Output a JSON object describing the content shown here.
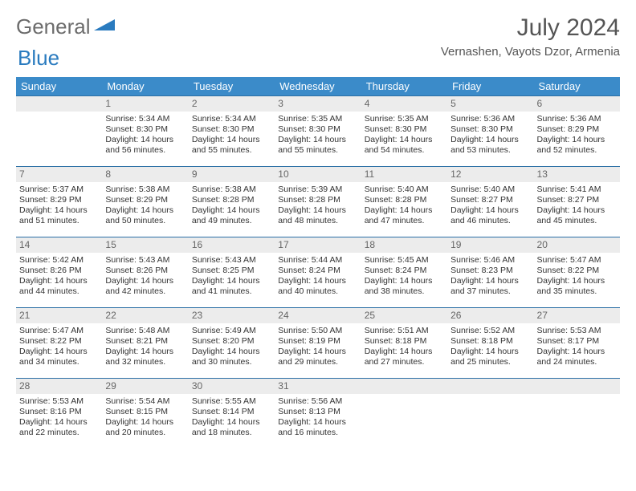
{
  "brand": {
    "part1": "General",
    "part2": "Blue"
  },
  "title": "July 2024",
  "location": "Vernashen, Vayots Dzor, Armenia",
  "colors": {
    "header_bg": "#3b8bc9",
    "row_border": "#2a6fa5",
    "daynum_bg": "#ececec",
    "brand_gray": "#6c6c6c",
    "brand_blue": "#2a7bbf"
  },
  "weekdays": [
    "Sunday",
    "Monday",
    "Tuesday",
    "Wednesday",
    "Thursday",
    "Friday",
    "Saturday"
  ],
  "weeks": [
    [
      null,
      {
        "d": "1",
        "sr": "Sunrise: 5:34 AM",
        "ss": "Sunset: 8:30 PM",
        "dl1": "Daylight: 14 hours",
        "dl2": "and 56 minutes."
      },
      {
        "d": "2",
        "sr": "Sunrise: 5:34 AM",
        "ss": "Sunset: 8:30 PM",
        "dl1": "Daylight: 14 hours",
        "dl2": "and 55 minutes."
      },
      {
        "d": "3",
        "sr": "Sunrise: 5:35 AM",
        "ss": "Sunset: 8:30 PM",
        "dl1": "Daylight: 14 hours",
        "dl2": "and 55 minutes."
      },
      {
        "d": "4",
        "sr": "Sunrise: 5:35 AM",
        "ss": "Sunset: 8:30 PM",
        "dl1": "Daylight: 14 hours",
        "dl2": "and 54 minutes."
      },
      {
        "d": "5",
        "sr": "Sunrise: 5:36 AM",
        "ss": "Sunset: 8:30 PM",
        "dl1": "Daylight: 14 hours",
        "dl2": "and 53 minutes."
      },
      {
        "d": "6",
        "sr": "Sunrise: 5:36 AM",
        "ss": "Sunset: 8:29 PM",
        "dl1": "Daylight: 14 hours",
        "dl2": "and 52 minutes."
      }
    ],
    [
      {
        "d": "7",
        "sr": "Sunrise: 5:37 AM",
        "ss": "Sunset: 8:29 PM",
        "dl1": "Daylight: 14 hours",
        "dl2": "and 51 minutes."
      },
      {
        "d": "8",
        "sr": "Sunrise: 5:38 AM",
        "ss": "Sunset: 8:29 PM",
        "dl1": "Daylight: 14 hours",
        "dl2": "and 50 minutes."
      },
      {
        "d": "9",
        "sr": "Sunrise: 5:38 AM",
        "ss": "Sunset: 8:28 PM",
        "dl1": "Daylight: 14 hours",
        "dl2": "and 49 minutes."
      },
      {
        "d": "10",
        "sr": "Sunrise: 5:39 AM",
        "ss": "Sunset: 8:28 PM",
        "dl1": "Daylight: 14 hours",
        "dl2": "and 48 minutes."
      },
      {
        "d": "11",
        "sr": "Sunrise: 5:40 AM",
        "ss": "Sunset: 8:28 PM",
        "dl1": "Daylight: 14 hours",
        "dl2": "and 47 minutes."
      },
      {
        "d": "12",
        "sr": "Sunrise: 5:40 AM",
        "ss": "Sunset: 8:27 PM",
        "dl1": "Daylight: 14 hours",
        "dl2": "and 46 minutes."
      },
      {
        "d": "13",
        "sr": "Sunrise: 5:41 AM",
        "ss": "Sunset: 8:27 PM",
        "dl1": "Daylight: 14 hours",
        "dl2": "and 45 minutes."
      }
    ],
    [
      {
        "d": "14",
        "sr": "Sunrise: 5:42 AM",
        "ss": "Sunset: 8:26 PM",
        "dl1": "Daylight: 14 hours",
        "dl2": "and 44 minutes."
      },
      {
        "d": "15",
        "sr": "Sunrise: 5:43 AM",
        "ss": "Sunset: 8:26 PM",
        "dl1": "Daylight: 14 hours",
        "dl2": "and 42 minutes."
      },
      {
        "d": "16",
        "sr": "Sunrise: 5:43 AM",
        "ss": "Sunset: 8:25 PM",
        "dl1": "Daylight: 14 hours",
        "dl2": "and 41 minutes."
      },
      {
        "d": "17",
        "sr": "Sunrise: 5:44 AM",
        "ss": "Sunset: 8:24 PM",
        "dl1": "Daylight: 14 hours",
        "dl2": "and 40 minutes."
      },
      {
        "d": "18",
        "sr": "Sunrise: 5:45 AM",
        "ss": "Sunset: 8:24 PM",
        "dl1": "Daylight: 14 hours",
        "dl2": "and 38 minutes."
      },
      {
        "d": "19",
        "sr": "Sunrise: 5:46 AM",
        "ss": "Sunset: 8:23 PM",
        "dl1": "Daylight: 14 hours",
        "dl2": "and 37 minutes."
      },
      {
        "d": "20",
        "sr": "Sunrise: 5:47 AM",
        "ss": "Sunset: 8:22 PM",
        "dl1": "Daylight: 14 hours",
        "dl2": "and 35 minutes."
      }
    ],
    [
      {
        "d": "21",
        "sr": "Sunrise: 5:47 AM",
        "ss": "Sunset: 8:22 PM",
        "dl1": "Daylight: 14 hours",
        "dl2": "and 34 minutes."
      },
      {
        "d": "22",
        "sr": "Sunrise: 5:48 AM",
        "ss": "Sunset: 8:21 PM",
        "dl1": "Daylight: 14 hours",
        "dl2": "and 32 minutes."
      },
      {
        "d": "23",
        "sr": "Sunrise: 5:49 AM",
        "ss": "Sunset: 8:20 PM",
        "dl1": "Daylight: 14 hours",
        "dl2": "and 30 minutes."
      },
      {
        "d": "24",
        "sr": "Sunrise: 5:50 AM",
        "ss": "Sunset: 8:19 PM",
        "dl1": "Daylight: 14 hours",
        "dl2": "and 29 minutes."
      },
      {
        "d": "25",
        "sr": "Sunrise: 5:51 AM",
        "ss": "Sunset: 8:18 PM",
        "dl1": "Daylight: 14 hours",
        "dl2": "and 27 minutes."
      },
      {
        "d": "26",
        "sr": "Sunrise: 5:52 AM",
        "ss": "Sunset: 8:18 PM",
        "dl1": "Daylight: 14 hours",
        "dl2": "and 25 minutes."
      },
      {
        "d": "27",
        "sr": "Sunrise: 5:53 AM",
        "ss": "Sunset: 8:17 PM",
        "dl1": "Daylight: 14 hours",
        "dl2": "and 24 minutes."
      }
    ],
    [
      {
        "d": "28",
        "sr": "Sunrise: 5:53 AM",
        "ss": "Sunset: 8:16 PM",
        "dl1": "Daylight: 14 hours",
        "dl2": "and 22 minutes."
      },
      {
        "d": "29",
        "sr": "Sunrise: 5:54 AM",
        "ss": "Sunset: 8:15 PM",
        "dl1": "Daylight: 14 hours",
        "dl2": "and 20 minutes."
      },
      {
        "d": "30",
        "sr": "Sunrise: 5:55 AM",
        "ss": "Sunset: 8:14 PM",
        "dl1": "Daylight: 14 hours",
        "dl2": "and 18 minutes."
      },
      {
        "d": "31",
        "sr": "Sunrise: 5:56 AM",
        "ss": "Sunset: 8:13 PM",
        "dl1": "Daylight: 14 hours",
        "dl2": "and 16 minutes."
      },
      null,
      null,
      null
    ]
  ]
}
